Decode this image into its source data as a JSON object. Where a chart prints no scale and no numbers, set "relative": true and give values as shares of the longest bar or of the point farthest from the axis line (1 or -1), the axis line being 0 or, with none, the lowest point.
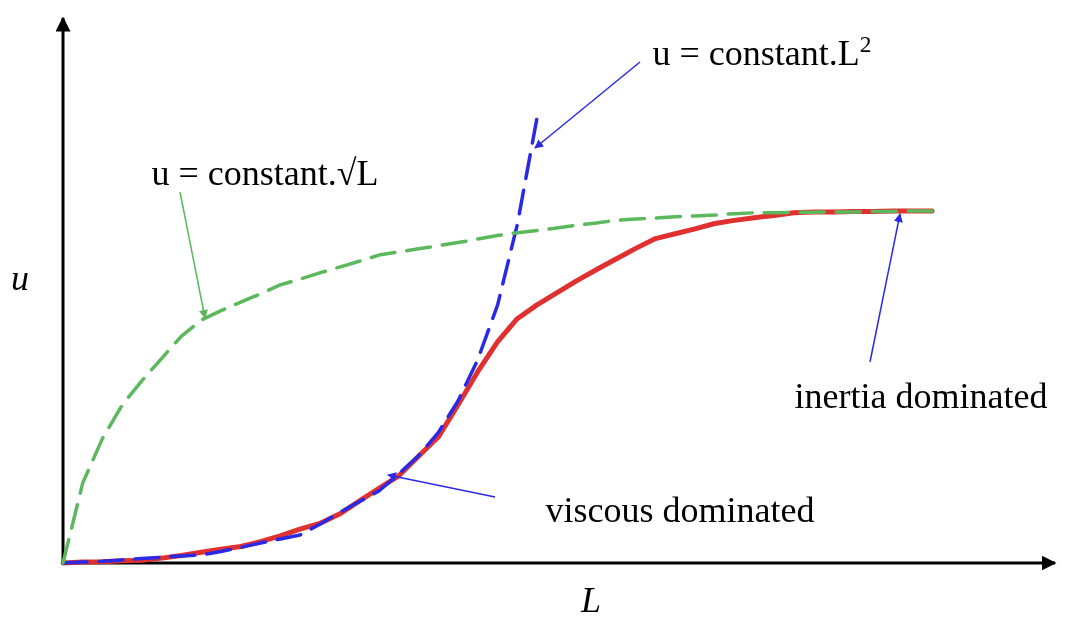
{
  "chart_data": {
    "type": "line",
    "relative": true,
    "xlabel": "L",
    "ylabel": "u",
    "categories": [
      null,
      null,
      null,
      null,
      null,
      null,
      null,
      null,
      null,
      null,
      null,
      null,
      null,
      null,
      null,
      null,
      null,
      null,
      null,
      null,
      null,
      null,
      null,
      null,
      null,
      null,
      null,
      null,
      null,
      null,
      null,
      null,
      null,
      null,
      null,
      null,
      null,
      null,
      null,
      null,
      null,
      null,
      null,
      null,
      null
    ],
    "series": [
      {
        "color": "#5cb85c",
        "line_style": "dashed",
        "values": [
          0,
          0.18,
          0.28,
          0.355,
          0.41,
          0.46,
          0.51,
          0.546,
          0.567,
          0.586,
          0.605,
          0.625,
          0.638,
          0.652,
          0.665,
          0.678,
          0.692,
          0.699,
          0.706,
          0.713,
          0.72,
          0.728,
          0.736,
          0.742,
          0.747,
          0.753,
          0.759,
          0.764,
          0.77,
          0.773,
          0.775,
          0.778,
          0.78,
          0.782,
          0.785,
          0.787,
          0.787,
          0.788,
          0.788,
          0.789,
          0.789,
          0.79,
          0.79,
          0.791,
          0.791
        ]
      },
      {
        "color": "#2a2ae6",
        "line_style": "dashed",
        "values": [
          0,
          0.002,
          0.004,
          0.007,
          0.01,
          0.013,
          0.016,
          0.018,
          0.026,
          0.035,
          0.045,
          0.054,
          0.063,
          0.087,
          0.113,
          0.138,
          0.162,
          0.2,
          0.241,
          0.293,
          0.364,
          0.457,
          0.579,
          0.76,
          1.0,
          null,
          null,
          null,
          null,
          null,
          null,
          null,
          null,
          null,
          null,
          null,
          null,
          null,
          null,
          null,
          null,
          null,
          null,
          null,
          null
        ]
      },
      {
        "color": "#e03030",
        "line_style": "solid",
        "values": [
          0,
          0.002,
          0.003,
          0.005,
          0.006,
          0.011,
          0.017,
          0.024,
          0.031,
          0.037,
          0.048,
          0.061,
          0.076,
          0.089,
          0.11,
          0.139,
          0.168,
          0.196,
          0.24,
          0.283,
          0.355,
          0.43,
          0.497,
          0.549,
          0.58,
          0.607,
          0.634,
          0.659,
          0.683,
          0.707,
          0.729,
          0.74,
          0.751,
          0.763,
          0.77,
          0.776,
          0.781,
          0.787,
          0.789,
          0.789,
          0.79,
          0.79,
          0.791,
          0.791,
          0.791
        ]
      }
    ],
    "annotations": [
      "u = constant.√L",
      "u = constant.L$^{2}$",
      "inertia dominated",
      "viscous dominated"
    ]
  }
}
